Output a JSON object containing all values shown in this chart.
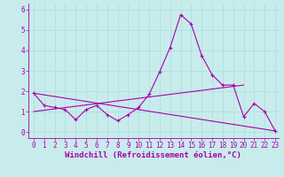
{
  "xlabel": "Windchill (Refroidissement éolien,°C)",
  "background_color": "#c8ecec",
  "line_color": "#aa00aa",
  "grid_color": "#aadddd",
  "xlim": [
    -0.5,
    23.3
  ],
  "ylim": [
    -0.3,
    6.3
  ],
  "yticks": [
    0,
    1,
    2,
    3,
    4,
    5,
    6
  ],
  "xticks": [
    0,
    1,
    2,
    3,
    4,
    5,
    6,
    7,
    8,
    9,
    10,
    11,
    12,
    13,
    14,
    15,
    16,
    17,
    18,
    19,
    20,
    21,
    22,
    23
  ],
  "curve1_x": [
    0,
    1,
    2,
    3,
    4,
    5,
    6,
    7,
    8,
    9,
    10,
    11,
    12,
    13,
    14,
    15,
    16,
    17,
    18,
    19,
    20,
    21,
    22,
    23
  ],
  "curve1_y": [
    1.9,
    1.3,
    1.2,
    1.1,
    0.6,
    1.1,
    1.3,
    0.85,
    0.55,
    0.85,
    1.2,
    1.85,
    2.95,
    4.15,
    5.75,
    5.3,
    3.75,
    2.8,
    2.3,
    2.3,
    0.75,
    1.4,
    1.0,
    0.05
  ],
  "trend1_x": [
    0,
    23
  ],
  "trend1_y": [
    1.9,
    0.05
  ],
  "trend2_x": [
    0,
    20
  ],
  "trend2_y": [
    1.0,
    2.3
  ],
  "tick_fontsize": 5.5,
  "xlabel_fontsize": 6.5,
  "figsize": [
    3.2,
    2.0
  ],
  "dpi": 100
}
